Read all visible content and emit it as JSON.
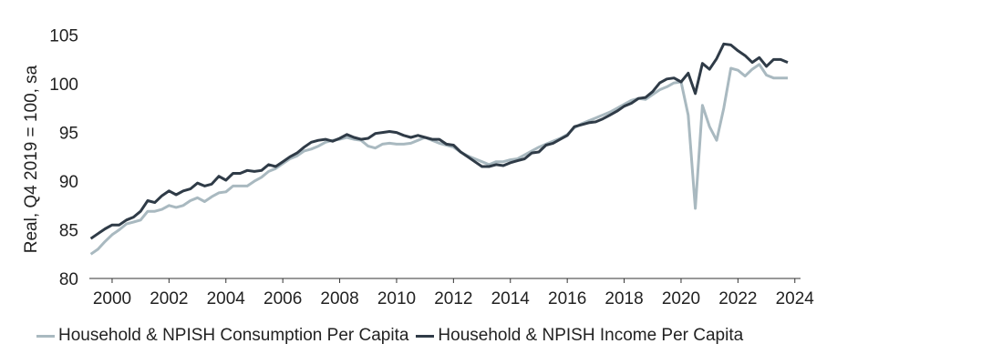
{
  "chart_data": {
    "type": "line",
    "ylabel": "Real, Q4 2019 = 100, sa",
    "xlabel": "",
    "ylim": [
      80,
      106
    ],
    "xlim": [
      1999.2,
      2024.2
    ],
    "yticks": [
      80,
      85,
      90,
      95,
      100,
      105
    ],
    "xticks": [
      2000,
      2002,
      2004,
      2006,
      2008,
      2010,
      2012,
      2014,
      2016,
      2018,
      2020,
      2022,
      2024
    ],
    "grid": false,
    "legend_position": "bottom",
    "series": [
      {
        "name": "Household & NPISH Consumption Per Capita",
        "color": "#a9b9c0",
        "points": [
          [
            1999.25,
            82.5
          ],
          [
            1999.5,
            83.0
          ],
          [
            1999.75,
            83.8
          ],
          [
            2000.0,
            84.5
          ],
          [
            2000.25,
            85.0
          ],
          [
            2000.5,
            85.6
          ],
          [
            2000.75,
            85.8
          ],
          [
            2001.0,
            86.0
          ],
          [
            2001.25,
            86.9
          ],
          [
            2001.5,
            86.9
          ],
          [
            2001.75,
            87.1
          ],
          [
            2002.0,
            87.5
          ],
          [
            2002.25,
            87.3
          ],
          [
            2002.5,
            87.5
          ],
          [
            2002.75,
            88.0
          ],
          [
            2003.0,
            88.3
          ],
          [
            2003.25,
            87.9
          ],
          [
            2003.5,
            88.4
          ],
          [
            2003.75,
            88.8
          ],
          [
            2004.0,
            88.9
          ],
          [
            2004.25,
            89.5
          ],
          [
            2004.5,
            89.5
          ],
          [
            2004.75,
            89.5
          ],
          [
            2005.0,
            90.0
          ],
          [
            2005.25,
            90.4
          ],
          [
            2005.5,
            91.0
          ],
          [
            2005.75,
            91.3
          ],
          [
            2006.0,
            91.8
          ],
          [
            2006.25,
            92.3
          ],
          [
            2006.5,
            92.6
          ],
          [
            2006.75,
            93.1
          ],
          [
            2007.0,
            93.3
          ],
          [
            2007.25,
            93.6
          ],
          [
            2007.5,
            94.0
          ],
          [
            2007.75,
            94.2
          ],
          [
            2008.0,
            94.3
          ],
          [
            2008.25,
            94.5
          ],
          [
            2008.5,
            94.3
          ],
          [
            2008.75,
            94.2
          ],
          [
            2009.0,
            93.6
          ],
          [
            2009.25,
            93.4
          ],
          [
            2009.5,
            93.8
          ],
          [
            2009.75,
            93.9
          ],
          [
            2010.0,
            93.8
          ],
          [
            2010.25,
            93.8
          ],
          [
            2010.5,
            93.9
          ],
          [
            2010.75,
            94.2
          ],
          [
            2011.0,
            94.5
          ],
          [
            2011.25,
            94.2
          ],
          [
            2011.5,
            93.9
          ],
          [
            2011.75,
            93.7
          ],
          [
            2012.0,
            93.5
          ],
          [
            2012.25,
            93.0
          ],
          [
            2012.5,
            92.6
          ],
          [
            2012.75,
            92.3
          ],
          [
            2013.0,
            92.0
          ],
          [
            2013.25,
            91.7
          ],
          [
            2013.5,
            92.0
          ],
          [
            2013.75,
            92.0
          ],
          [
            2014.0,
            92.2
          ],
          [
            2014.25,
            92.3
          ],
          [
            2014.5,
            92.7
          ],
          [
            2014.75,
            93.1
          ],
          [
            2015.0,
            93.5
          ],
          [
            2015.25,
            93.8
          ],
          [
            2015.5,
            94.1
          ],
          [
            2015.75,
            94.4
          ],
          [
            2016.0,
            94.8
          ],
          [
            2016.25,
            95.5
          ],
          [
            2016.5,
            95.9
          ],
          [
            2016.75,
            96.2
          ],
          [
            2017.0,
            96.5
          ],
          [
            2017.25,
            96.8
          ],
          [
            2017.5,
            97.1
          ],
          [
            2017.75,
            97.5
          ],
          [
            2018.0,
            97.9
          ],
          [
            2018.25,
            98.3
          ],
          [
            2018.5,
            98.5
          ],
          [
            2018.75,
            98.4
          ],
          [
            2019.0,
            98.9
          ],
          [
            2019.25,
            99.4
          ],
          [
            2019.5,
            99.7
          ],
          [
            2019.75,
            100.1
          ],
          [
            2020.0,
            100.2
          ],
          [
            2020.25,
            96.8
          ],
          [
            2020.5,
            87.2
          ],
          [
            2020.75,
            97.8
          ],
          [
            2021.0,
            95.6
          ],
          [
            2021.25,
            94.2
          ],
          [
            2021.5,
            97.5
          ],
          [
            2021.75,
            101.6
          ],
          [
            2022.0,
            101.4
          ],
          [
            2022.25,
            100.8
          ],
          [
            2022.5,
            101.5
          ],
          [
            2022.75,
            102.0
          ],
          [
            2023.0,
            100.9
          ],
          [
            2023.25,
            100.6
          ],
          [
            2023.5,
            100.6
          ],
          [
            2023.75,
            100.6
          ]
        ]
      },
      {
        "name": "Household & NPISH Income Per Capita",
        "color": "#2f3b47",
        "points": [
          [
            1999.25,
            84.1
          ],
          [
            1999.5,
            84.6
          ],
          [
            1999.75,
            85.1
          ],
          [
            2000.0,
            85.5
          ],
          [
            2000.25,
            85.5
          ],
          [
            2000.5,
            86.0
          ],
          [
            2000.75,
            86.3
          ],
          [
            2001.0,
            86.9
          ],
          [
            2001.25,
            88.0
          ],
          [
            2001.5,
            87.8
          ],
          [
            2001.75,
            88.5
          ],
          [
            2002.0,
            89.0
          ],
          [
            2002.25,
            88.6
          ],
          [
            2002.5,
            89.0
          ],
          [
            2002.75,
            89.2
          ],
          [
            2003.0,
            89.8
          ],
          [
            2003.25,
            89.5
          ],
          [
            2003.5,
            89.7
          ],
          [
            2003.75,
            90.5
          ],
          [
            2004.0,
            90.1
          ],
          [
            2004.25,
            90.8
          ],
          [
            2004.5,
            90.8
          ],
          [
            2004.75,
            91.1
          ],
          [
            2005.0,
            91.0
          ],
          [
            2005.25,
            91.1
          ],
          [
            2005.5,
            91.7
          ],
          [
            2005.75,
            91.5
          ],
          [
            2006.0,
            92.0
          ],
          [
            2006.25,
            92.5
          ],
          [
            2006.5,
            92.9
          ],
          [
            2006.75,
            93.5
          ],
          [
            2007.0,
            94.0
          ],
          [
            2007.25,
            94.2
          ],
          [
            2007.5,
            94.3
          ],
          [
            2007.75,
            94.1
          ],
          [
            2008.0,
            94.4
          ],
          [
            2008.25,
            94.8
          ],
          [
            2008.5,
            94.5
          ],
          [
            2008.75,
            94.3
          ],
          [
            2009.0,
            94.4
          ],
          [
            2009.25,
            94.9
          ],
          [
            2009.5,
            95.0
          ],
          [
            2009.75,
            95.1
          ],
          [
            2010.0,
            95.0
          ],
          [
            2010.25,
            94.7
          ],
          [
            2010.5,
            94.5
          ],
          [
            2010.75,
            94.7
          ],
          [
            2011.0,
            94.5
          ],
          [
            2011.25,
            94.3
          ],
          [
            2011.5,
            94.3
          ],
          [
            2011.75,
            93.8
          ],
          [
            2012.0,
            93.7
          ],
          [
            2012.25,
            93.0
          ],
          [
            2012.5,
            92.5
          ],
          [
            2012.75,
            92.0
          ],
          [
            2013.0,
            91.5
          ],
          [
            2013.25,
            91.5
          ],
          [
            2013.5,
            91.7
          ],
          [
            2013.75,
            91.6
          ],
          [
            2014.0,
            91.9
          ],
          [
            2014.25,
            92.1
          ],
          [
            2014.5,
            92.3
          ],
          [
            2014.75,
            92.9
          ],
          [
            2015.0,
            93.0
          ],
          [
            2015.25,
            93.7
          ],
          [
            2015.5,
            93.9
          ],
          [
            2015.75,
            94.3
          ],
          [
            2016.0,
            94.7
          ],
          [
            2016.25,
            95.6
          ],
          [
            2016.5,
            95.8
          ],
          [
            2016.75,
            96.0
          ],
          [
            2017.0,
            96.1
          ],
          [
            2017.25,
            96.4
          ],
          [
            2017.5,
            96.8
          ],
          [
            2017.75,
            97.2
          ],
          [
            2018.0,
            97.7
          ],
          [
            2018.25,
            98.0
          ],
          [
            2018.5,
            98.5
          ],
          [
            2018.75,
            98.6
          ],
          [
            2019.0,
            99.2
          ],
          [
            2019.25,
            100.1
          ],
          [
            2019.5,
            100.5
          ],
          [
            2019.75,
            100.6
          ],
          [
            2020.0,
            100.2
          ],
          [
            2020.25,
            101.1
          ],
          [
            2020.5,
            99.0
          ],
          [
            2020.75,
            102.1
          ],
          [
            2021.0,
            101.5
          ],
          [
            2021.25,
            102.6
          ],
          [
            2021.5,
            104.1
          ],
          [
            2021.75,
            104.0
          ],
          [
            2022.0,
            103.4
          ],
          [
            2022.25,
            102.9
          ],
          [
            2022.5,
            102.2
          ],
          [
            2022.75,
            102.7
          ],
          [
            2023.0,
            101.8
          ],
          [
            2023.25,
            102.5
          ],
          [
            2023.5,
            102.5
          ],
          [
            2023.75,
            102.2
          ]
        ]
      }
    ]
  }
}
